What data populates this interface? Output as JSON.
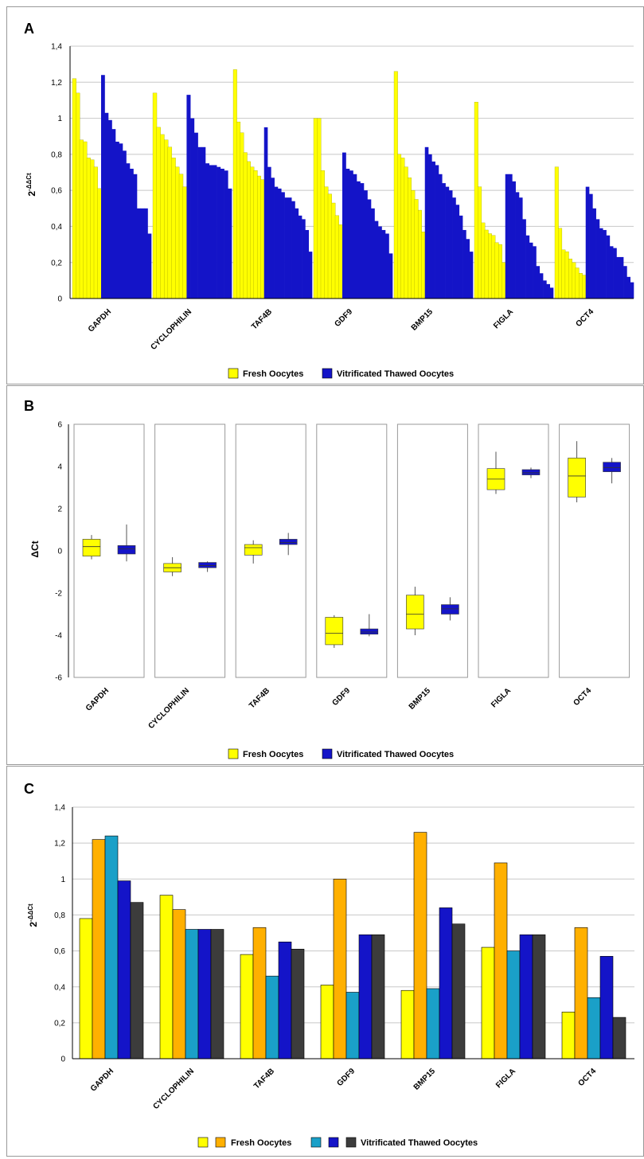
{
  "colors": {
    "fresh": "#ffff00",
    "vitrified": "#1414c8",
    "orange": "#ffb000",
    "teal": "#1aa0c8",
    "dark": "#3c3c3c",
    "panel_border": "#999999"
  },
  "categories": [
    "GAPDH",
    "CYCLOPHILIN",
    "TAF4B",
    "GDF9",
    "BMP15",
    "FIGLA",
    "OCT4"
  ],
  "legend_fresh": "Fresh Oocytes",
  "legend_vitrified": "Vitrificated Thawed Oocytes",
  "panels": {
    "A": {
      "label": "A",
      "ylabel_base": "2",
      "ylabel_exp": "-ΔΔCt",
      "ticks": [
        "1,4",
        "1,2",
        "1",
        "0,8",
        "0,6",
        "0,4",
        "0,2",
        "0"
      ]
    },
    "B": {
      "label": "B",
      "ylabel": "ΔCt",
      "ticks": [
        "6",
        "4",
        "2",
        "0",
        "-2",
        "-4",
        "-6"
      ]
    },
    "C": {
      "label": "C",
      "ylabel_base": "2",
      "ylabel_exp": "-ΔΔCt",
      "ticks": [
        "1,4",
        "1,2",
        "1",
        "0,8",
        "0,6",
        "0,4",
        "0,2",
        "0"
      ]
    }
  },
  "chart_data": [
    {
      "panel": "A",
      "type": "bar",
      "ylim": [
        0,
        1.4
      ],
      "ylabel": "2-ΔΔCt",
      "categories": [
        "GAPDH",
        "CYCLOPHILIN",
        "TAF4B",
        "GDF9",
        "BMP15",
        "FIGLA",
        "OCT4"
      ],
      "series": [
        {
          "name": "Fresh Oocytes",
          "values": [
            [
              1.22,
              1.14,
              0.88,
              0.87,
              0.78,
              0.77,
              0.73,
              0.61
            ],
            [
              1.14,
              0.95,
              0.91,
              0.88,
              0.84,
              0.78,
              0.73,
              0.69,
              0.62
            ],
            [
              1.27,
              0.98,
              0.92,
              0.81,
              0.76,
              0.73,
              0.71,
              0.68,
              0.66
            ],
            [
              1.0,
              1.0,
              0.71,
              0.62,
              0.58,
              0.53,
              0.46,
              0.41
            ],
            [
              1.26,
              0.8,
              0.78,
              0.73,
              0.67,
              0.6,
              0.55,
              0.49,
              0.37
            ],
            [
              1.09,
              0.62,
              0.42,
              0.38,
              0.36,
              0.35,
              0.31,
              0.3,
              0.2
            ],
            [
              0.73,
              0.39,
              0.27,
              0.26,
              0.22,
              0.2,
              0.17,
              0.14,
              0.13
            ]
          ]
        },
        {
          "name": "Vitrificated Thawed Oocytes",
          "values": [
            [
              1.24,
              1.03,
              0.99,
              0.94,
              0.87,
              0.86,
              0.82,
              0.75,
              0.72,
              0.69,
              0.5,
              0.5,
              0.5,
              0.36
            ],
            [
              1.13,
              1.0,
              0.92,
              0.84,
              0.84,
              0.75,
              0.74,
              0.74,
              0.73,
              0.72,
              0.71,
              0.61
            ],
            [
              0.95,
              0.73,
              0.67,
              0.62,
              0.61,
              0.59,
              0.56,
              0.56,
              0.54,
              0.5,
              0.46,
              0.44,
              0.38,
              0.26
            ],
            [
              0.81,
              0.72,
              0.71,
              0.69,
              0.65,
              0.64,
              0.6,
              0.55,
              0.5,
              0.43,
              0.4,
              0.38,
              0.36,
              0.25
            ],
            [
              0.84,
              0.8,
              0.76,
              0.74,
              0.69,
              0.64,
              0.62,
              0.6,
              0.56,
              0.52,
              0.46,
              0.38,
              0.33,
              0.26
            ],
            [
              0.69,
              0.69,
              0.65,
              0.59,
              0.56,
              0.44,
              0.35,
              0.31,
              0.29,
              0.18,
              0.14,
              0.1,
              0.08,
              0.06
            ],
            [
              0.62,
              0.58,
              0.5,
              0.44,
              0.39,
              0.38,
              0.35,
              0.29,
              0.28,
              0.23,
              0.23,
              0.18,
              0.12,
              0.09
            ]
          ]
        }
      ]
    },
    {
      "panel": "B",
      "type": "box",
      "ylim": [
        -6,
        6
      ],
      "ylabel": "ΔCt",
      "categories": [
        "GAPDH",
        "CYCLOPHILIN",
        "TAF4B",
        "GDF9",
        "BMP15",
        "FIGLA",
        "OCT4"
      ],
      "series": [
        {
          "name": "Fresh Oocytes",
          "boxes": [
            {
              "min": -0.4,
              "q1": -0.25,
              "median": 0.2,
              "q3": 0.55,
              "max": 0.75
            },
            {
              "min": -1.2,
              "q1": -1.0,
              "median": -0.8,
              "q3": -0.6,
              "max": -0.3
            },
            {
              "min": -0.6,
              "q1": -0.2,
              "median": 0.15,
              "q3": 0.3,
              "max": 0.5
            },
            {
              "min": -4.6,
              "q1": -4.45,
              "median": -3.9,
              "q3": -3.15,
              "max": -3.05
            },
            {
              "min": -4.0,
              "q1": -3.7,
              "median": -3.0,
              "q3": -2.1,
              "max": -1.7
            },
            {
              "min": 2.7,
              "q1": 2.9,
              "median": 3.4,
              "q3": 3.9,
              "max": 4.7
            },
            {
              "min": 2.3,
              "q1": 2.55,
              "median": 3.55,
              "q3": 4.4,
              "max": 5.2
            }
          ]
        },
        {
          "name": "Vitrificated Thawed Oocytes",
          "boxes": [
            {
              "min": -0.5,
              "q1": -0.15,
              "median": 0.1,
              "q3": 0.25,
              "max": 1.25
            },
            {
              "min": -1.0,
              "q1": -0.8,
              "median": -0.7,
              "q3": -0.55,
              "max": -0.5
            },
            {
              "min": -0.2,
              "q1": 0.3,
              "median": 0.4,
              "q3": 0.55,
              "max": 0.85
            },
            {
              "min": -4.05,
              "q1": -3.95,
              "median": -3.85,
              "q3": -3.7,
              "max": -3.0
            },
            {
              "min": -3.3,
              "q1": -3.0,
              "median": -2.75,
              "q3": -2.55,
              "max": -2.2
            },
            {
              "min": 3.45,
              "q1": 3.6,
              "median": 3.7,
              "q3": 3.85,
              "max": 3.95
            },
            {
              "min": 3.2,
              "q1": 3.75,
              "median": 3.95,
              "q3": 4.2,
              "max": 4.4
            }
          ]
        }
      ]
    },
    {
      "panel": "C",
      "type": "bar",
      "ylim": [
        0,
        1.4
      ],
      "ylabel": "2-ΔΔCt",
      "categories": [
        "GAPDH",
        "CYCLOPHILIN",
        "TAF4B",
        "GDF9",
        "BMP15",
        "FIGLA",
        "OCT4"
      ],
      "series": [
        {
          "group": "Fresh Oocytes",
          "color": "#ffff00",
          "values": [
            0.78,
            0.91,
            0.58,
            0.41,
            0.38,
            0.62,
            0.26
          ]
        },
        {
          "group": "Fresh Oocytes",
          "color": "#ffb000",
          "values": [
            1.22,
            0.83,
            0.73,
            1.0,
            1.26,
            1.09,
            0.73
          ]
        },
        {
          "group": "Vitrificated Thawed Oocytes",
          "color": "#1aa0c8",
          "values": [
            1.24,
            0.72,
            0.46,
            0.37,
            0.39,
            0.6,
            0.34
          ]
        },
        {
          "group": "Vitrificated Thawed Oocytes",
          "color": "#1414c8",
          "values": [
            0.99,
            0.72,
            0.65,
            0.69,
            0.84,
            0.69,
            0.57
          ]
        },
        {
          "group": "Vitrificated Thawed Oocytes",
          "color": "#3c3c3c",
          "values": [
            0.87,
            0.72,
            0.61,
            0.69,
            0.75,
            0.69,
            0.23
          ]
        }
      ]
    }
  ]
}
